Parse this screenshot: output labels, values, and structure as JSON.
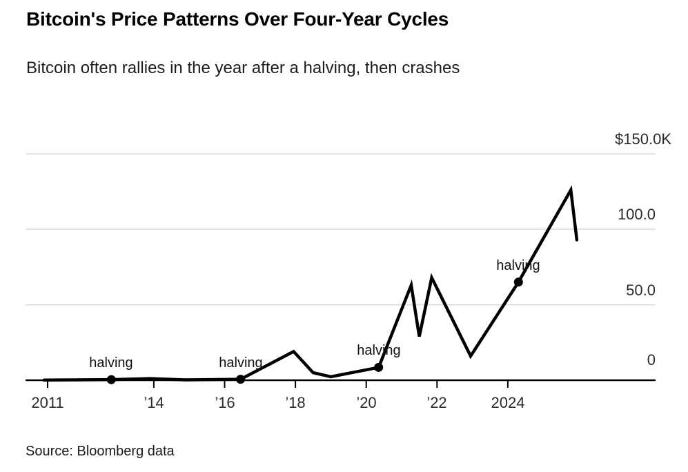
{
  "header": {
    "title": "Bitcoin's Price Patterns Over Four-Year Cycles",
    "subtitle": "Bitcoin often rallies in the year after a halving, then crashes"
  },
  "source": {
    "text": "Source: Bloomberg data"
  },
  "chart_data": {
    "type": "line",
    "title": "Bitcoin's Price Patterns Over Four-Year Cycles",
    "subtitle": "Bitcoin often rallies in the year after a halving, then crashes",
    "xlabel": "",
    "ylabel": "",
    "unit": "USD thousands",
    "xlim": [
      2010.8,
      2026.4
    ],
    "ylim": [
      0,
      150
    ],
    "grid": true,
    "legend": false,
    "line_color": "#000000",
    "grid_color": "#dcdcdc",
    "axis_color": "#000000",
    "y_ticks": [
      {
        "label": "$150.0K",
        "value": 150
      },
      {
        "label": "100.0",
        "value": 100
      },
      {
        "label": "50.0",
        "value": 50
      },
      {
        "label": "0",
        "value": 0
      }
    ],
    "x_ticks": [
      {
        "label": "2011",
        "year": 2011
      },
      {
        "label": "’14",
        "year": 2014
      },
      {
        "label": "’16",
        "year": 2016
      },
      {
        "label": "’18",
        "year": 2018
      },
      {
        "label": "’20",
        "year": 2020
      },
      {
        "label": "’22",
        "year": 2022
      },
      {
        "label": "2024",
        "year": 2024
      }
    ],
    "series": [
      {
        "name": "Bitcoin price",
        "points": [
          [
            2010.9,
            0.1
          ],
          [
            2012.8,
            0.4
          ],
          [
            2013.9,
            1.1
          ],
          [
            2014.9,
            0.25
          ],
          [
            2016.45,
            0.65
          ],
          [
            2017.95,
            19
          ],
          [
            2018.5,
            5
          ],
          [
            2019.0,
            2.3
          ],
          [
            2020.35,
            8.5
          ],
          [
            2021.27,
            63
          ],
          [
            2021.5,
            29
          ],
          [
            2021.85,
            68
          ],
          [
            2022.95,
            16
          ],
          [
            2024.3,
            65
          ],
          [
            2025.78,
            126
          ],
          [
            2025.95,
            93
          ]
        ]
      }
    ],
    "annotations": [
      {
        "label": "halving",
        "year": 2012.8,
        "value": 0.4
      },
      {
        "label": "halving",
        "year": 2016.45,
        "value": 0.65
      },
      {
        "label": "halving",
        "year": 2020.35,
        "value": 8.5
      },
      {
        "label": "halving",
        "year": 2024.3,
        "value": 65
      }
    ]
  }
}
